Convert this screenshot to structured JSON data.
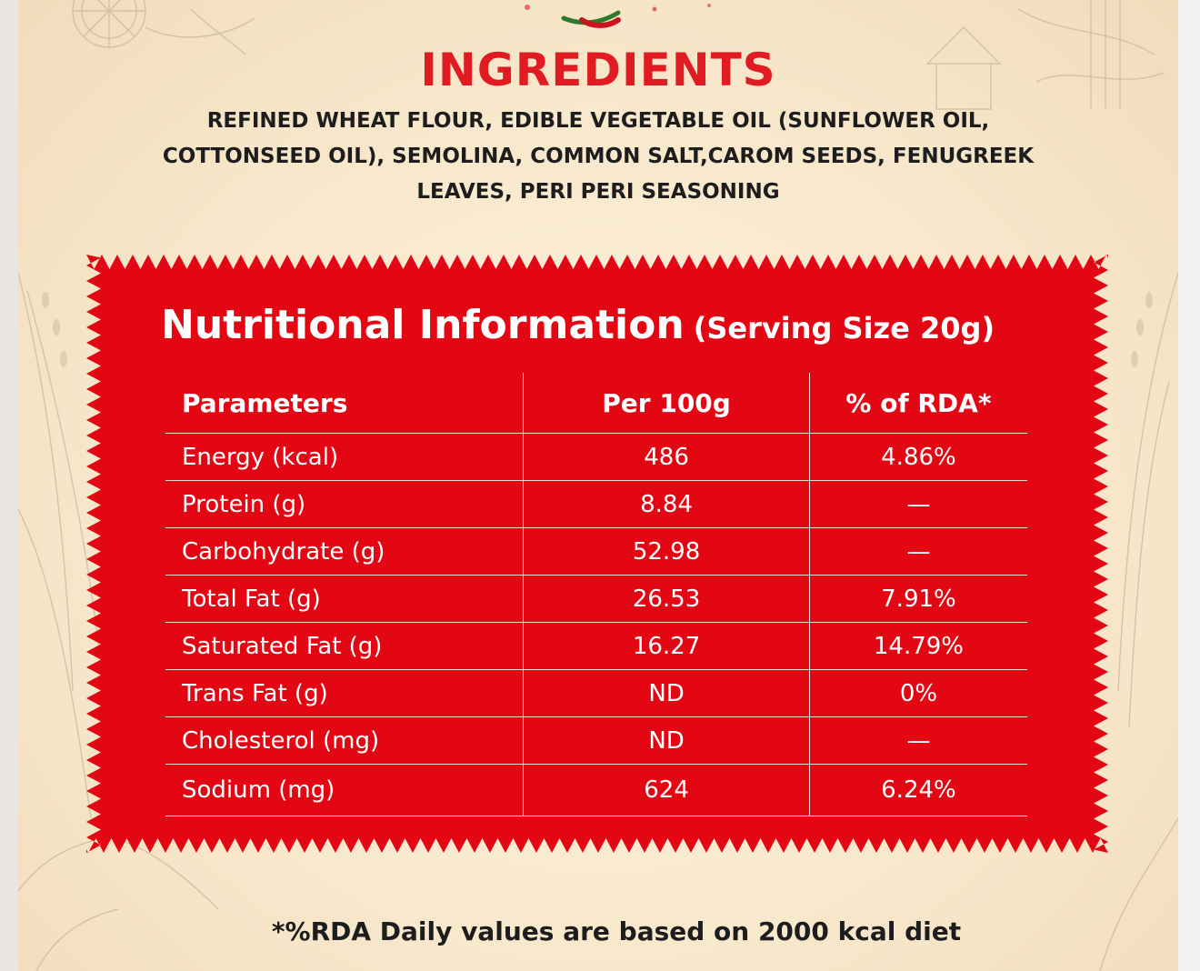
{
  "ingredients_section": {
    "heading": "INGREDIENTS",
    "text": "REFINED WHEAT FLOUR, EDIBLE VEGETABLE OIL (SUNFLOWER OIL, COTTONSEED OIL), SEMOLINA, COMMON SALT,CAROM SEEDS, FENUGREEK LEAVES, PERI PERI SEASONING"
  },
  "nutrition": {
    "title": "Nutritional Information",
    "serving_size": "(Serving Size 20g)",
    "accent_color": "#e30613",
    "headers": [
      "Parameters",
      "Per 100g",
      "% of RDA*"
    ],
    "rows": [
      [
        "Energy (kcal)",
        "486",
        "4.86%"
      ],
      [
        "Protein (g)",
        "8.84",
        "—"
      ],
      [
        "Carbohydrate (g)",
        "52.98",
        "—"
      ],
      [
        "Total Fat (g)",
        "26.53",
        "7.91%"
      ],
      [
        "Saturated Fat (g)",
        "16.27",
        "14.79%"
      ],
      [
        "Trans Fat (g)",
        "ND",
        "0%"
      ],
      [
        "Cholesterol (mg)",
        "ND",
        "—"
      ],
      [
        "Sodium (mg)",
        "624",
        "6.24%"
      ]
    ]
  },
  "footnote": "*%RDA Daily values are based on 2000 kcal diet"
}
